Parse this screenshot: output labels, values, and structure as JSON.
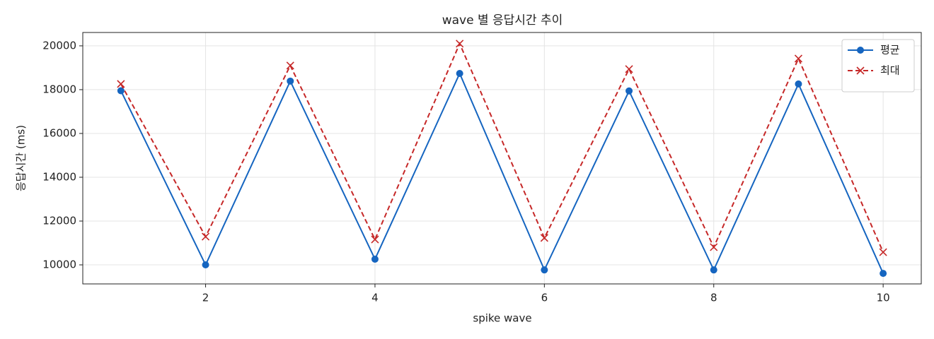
{
  "chart_data": {
    "type": "line",
    "title": "wave 별 응답시간 추이",
    "xlabel": "spike wave",
    "ylabel": "응답시간 (ms)",
    "x": [
      1,
      2,
      3,
      4,
      5,
      6,
      7,
      8,
      9,
      10
    ],
    "series": [
      {
        "name": "평균",
        "color": "#1565c0",
        "marker": "o",
        "dash": "solid",
        "values": [
          17950,
          10000,
          18390,
          10260,
          18740,
          9770,
          17940,
          9770,
          18260,
          9610
        ]
      },
      {
        "name": "최대",
        "color": "#c62828",
        "marker": "x",
        "dash": "dashed",
        "values": [
          18260,
          11290,
          19100,
          11160,
          20100,
          11230,
          18940,
          10810,
          19420,
          10580
        ]
      }
    ],
    "xlim": [
      0.55,
      10.45
    ],
    "ylim": [
      9130,
      20610
    ],
    "xticks": [
      2,
      4,
      6,
      8,
      10
    ],
    "yticks": [
      10000,
      12000,
      14000,
      16000,
      18000,
      20000
    ],
    "grid": true,
    "legend": "upper right"
  }
}
